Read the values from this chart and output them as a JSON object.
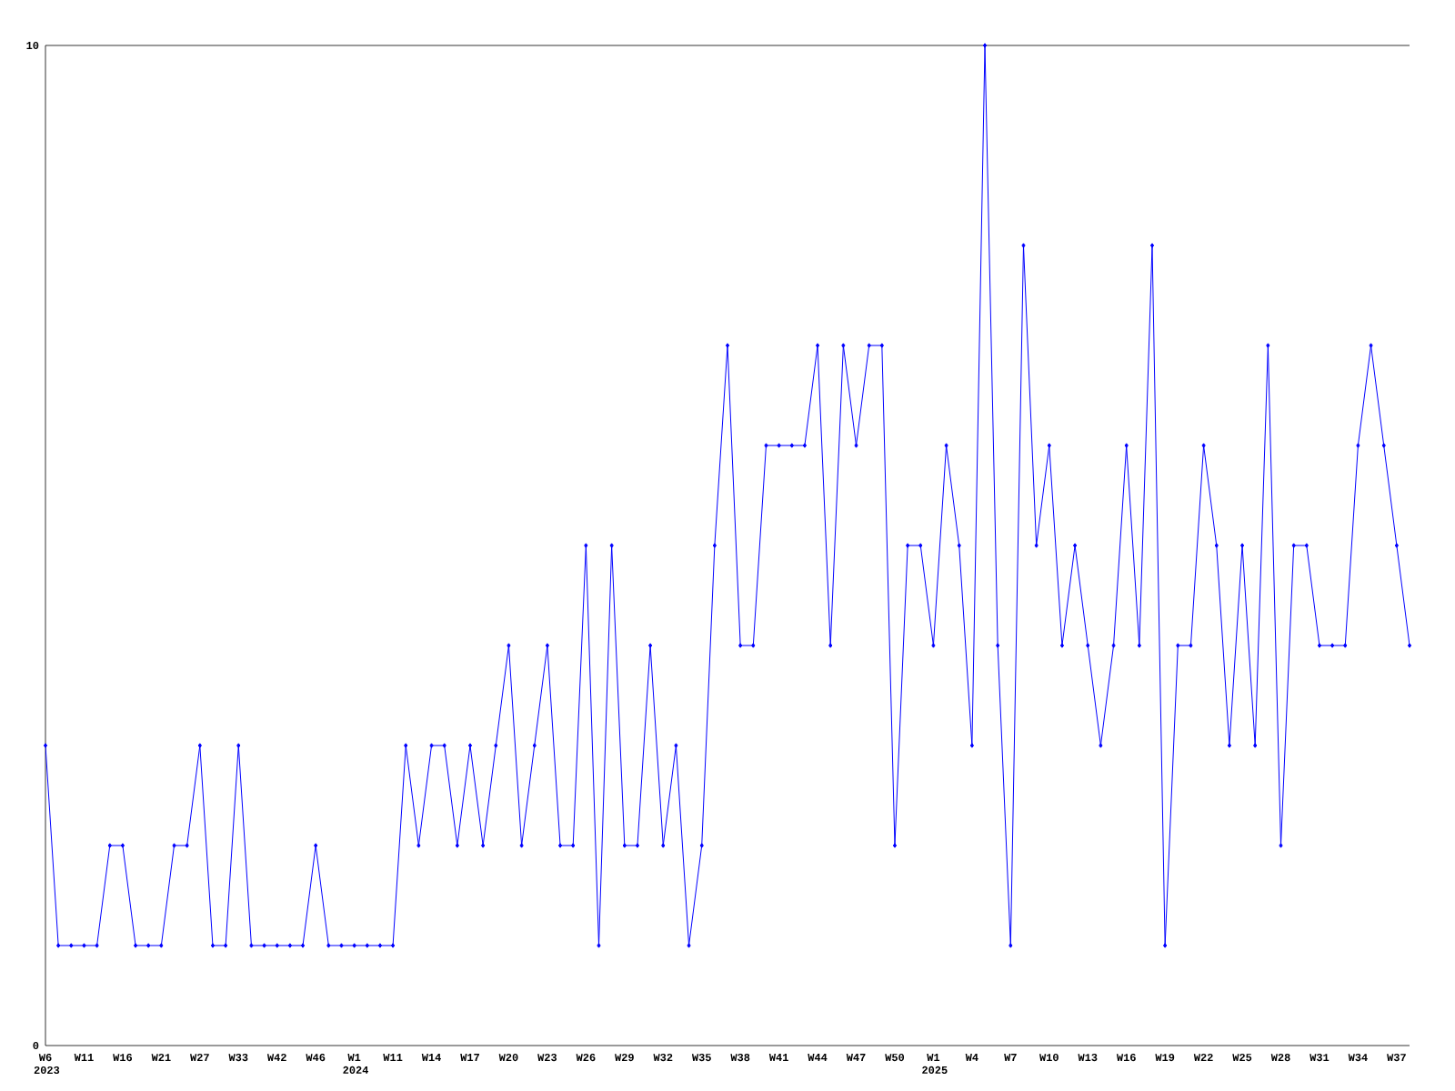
{
  "chart_data": {
    "type": "line",
    "categories": [
      "W6 2023",
      null,
      null,
      "W11",
      null,
      null,
      "W16",
      null,
      null,
      "W21",
      null,
      null,
      "W27",
      null,
      null,
      "W33",
      null,
      null,
      "W42",
      null,
      null,
      "W46",
      null,
      null,
      "W1 2024",
      null,
      null,
      "W11",
      null,
      null,
      "W14",
      null,
      null,
      "W17",
      null,
      null,
      "W20",
      null,
      null,
      "W23",
      null,
      null,
      "W26",
      null,
      null,
      "W29",
      null,
      null,
      "W32",
      null,
      null,
      "W35",
      null,
      null,
      "W38",
      null,
      null,
      "W41",
      null,
      null,
      "W44",
      null,
      null,
      "W47",
      null,
      null,
      "W50",
      null,
      null,
      "W1 2025",
      null,
      null,
      "W4",
      null,
      null,
      "W7",
      null,
      null,
      "W10",
      null,
      null,
      "W13",
      null,
      null,
      "W16",
      null,
      null,
      "W19",
      null,
      null,
      "W22",
      null,
      null,
      "W25",
      null,
      null,
      "W28",
      null,
      null,
      "W31",
      null,
      null,
      "W34",
      null,
      null,
      "W37",
      null
    ],
    "values": [
      3,
      1,
      1,
      1,
      1,
      2,
      2,
      1,
      1,
      1,
      2,
      2,
      3,
      1,
      1,
      3,
      1,
      1,
      1,
      1,
      1,
      2,
      1,
      1,
      1,
      1,
      1,
      1,
      3,
      2,
      3,
      3,
      2,
      3,
      2,
      3,
      4,
      2,
      3,
      4,
      2,
      2,
      5,
      1,
      5,
      2,
      2,
      4,
      2,
      3,
      1,
      2,
      5,
      7,
      4,
      4,
      6,
      6,
      6,
      6,
      7,
      4,
      7,
      6,
      7,
      7,
      2,
      5,
      5,
      4,
      6,
      5,
      3,
      10,
      4,
      1,
      8,
      5,
      6,
      4,
      5,
      4,
      3,
      4,
      6,
      4,
      8,
      1,
      4,
      4,
      6,
      5,
      3,
      5,
      3,
      7,
      2,
      5,
      5,
      4,
      4,
      4,
      6,
      7,
      6,
      5,
      4
    ],
    "color": "#0000ff",
    "marker": "diamond",
    "line_style": "solid",
    "ylim": [
      0,
      10
    ],
    "yticks": [
      0,
      10
    ],
    "grid": false
  }
}
